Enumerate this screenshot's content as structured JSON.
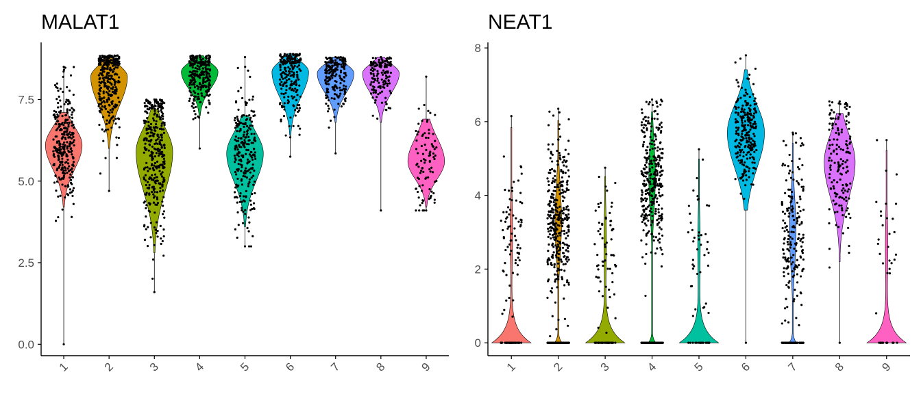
{
  "chart_data": [
    {
      "type": "violin",
      "title": "MALAT1",
      "xlabel": "",
      "ylabel": "",
      "categories": [
        "1",
        "2",
        "3",
        "4",
        "5",
        "6",
        "7",
        "8",
        "9"
      ],
      "y_ticks": [
        "0.0",
        "2.5",
        "5.0",
        "7.5"
      ],
      "ylim": [
        -0.35,
        9.25
      ],
      "x_tick_rotation": "45deg",
      "grid": false,
      "legend": "none",
      "colors": [
        "#F8766D",
        "#D39200",
        "#93AA00",
        "#00BA38",
        "#00C19F",
        "#00B9E3",
        "#619CFF",
        "#DB72FB",
        "#FF61C3"
      ],
      "series": [
        {
          "category": "1",
          "min": 0.0,
          "max": 8.5,
          "mode": 6.1,
          "q_low": 4.2,
          "q_high": 7.1,
          "n_points": 300
        },
        {
          "category": "2",
          "min": 4.7,
          "max": 8.85,
          "mode": 8.2,
          "q_low": 6.0,
          "q_high": 8.8,
          "n_points": 320
        },
        {
          "category": "3",
          "min": 1.6,
          "max": 7.5,
          "mode": 5.9,
          "q_low": 2.8,
          "q_high": 7.2,
          "n_points": 360
        },
        {
          "category": "4",
          "min": 6.0,
          "max": 8.85,
          "mode": 8.35,
          "q_low": 7.0,
          "q_high": 8.85,
          "n_points": 260
        },
        {
          "category": "5",
          "min": 3.0,
          "max": 8.8,
          "mode": 5.85,
          "q_low": 3.6,
          "q_high": 7.0,
          "n_points": 240
        },
        {
          "category": "6",
          "min": 5.75,
          "max": 8.9,
          "mode": 8.35,
          "q_low": 6.4,
          "q_high": 8.9,
          "n_points": 220
        },
        {
          "category": "7",
          "min": 5.85,
          "max": 8.8,
          "mode": 8.3,
          "q_low": 6.8,
          "q_high": 8.8,
          "n_points": 200
        },
        {
          "category": "8",
          "min": 4.1,
          "max": 8.8,
          "mode": 8.3,
          "q_low": 6.8,
          "q_high": 8.8,
          "n_points": 150
        },
        {
          "category": "9",
          "min": 4.1,
          "max": 8.2,
          "mode": 5.6,
          "q_low": 4.2,
          "q_high": 6.9,
          "n_points": 90
        }
      ]
    },
    {
      "type": "violin",
      "title": "NEAT1",
      "xlabel": "",
      "ylabel": "",
      "categories": [
        "1",
        "2",
        "3",
        "4",
        "5",
        "6",
        "7",
        "8",
        "9"
      ],
      "y_ticks": [
        "0",
        "2",
        "4",
        "6",
        "8"
      ],
      "ylim": [
        -0.35,
        8.15
      ],
      "x_tick_rotation": "45deg",
      "grid": false,
      "legend": "none",
      "colors": [
        "#F8766D",
        "#D39200",
        "#93AA00",
        "#00BA38",
        "#00C19F",
        "#00B9E3",
        "#619CFF",
        "#DB72FB",
        "#FF61C3"
      ],
      "series": [
        {
          "category": "1",
          "min": 0.0,
          "max": 6.15,
          "zero_heavy": true,
          "upper_mode": 3.0,
          "n_points": 120
        },
        {
          "category": "2",
          "min": 0.0,
          "max": 6.35,
          "zero_heavy": true,
          "upper_mode": 3.3,
          "n_points": 500
        },
        {
          "category": "3",
          "min": 0.0,
          "max": 4.75,
          "zero_heavy": true,
          "upper_mode": 2.7,
          "n_points": 100
        },
        {
          "category": "4",
          "min": 0.0,
          "max": 6.6,
          "zero_heavy": true,
          "upper_mode": 4.5,
          "n_points": 520
        },
        {
          "category": "5",
          "min": 0.0,
          "max": 5.25,
          "zero_heavy": true,
          "upper_mode": 2.6,
          "n_points": 60
        },
        {
          "category": "6",
          "min": 0.0,
          "max": 7.8,
          "zero_heavy": false,
          "upper_mode": 5.7,
          "n_points": 260
        },
        {
          "category": "7",
          "min": 0.0,
          "max": 5.7,
          "zero_heavy": true,
          "upper_mode": 3.0,
          "n_points": 300
        },
        {
          "category": "8",
          "min": 0.0,
          "max": 6.55,
          "zero_heavy": false,
          "upper_mode": 4.9,
          "n_points": 160
        },
        {
          "category": "9",
          "min": 0.0,
          "max": 5.5,
          "zero_heavy": true,
          "upper_mode": 2.6,
          "n_points": 40
        }
      ]
    }
  ]
}
